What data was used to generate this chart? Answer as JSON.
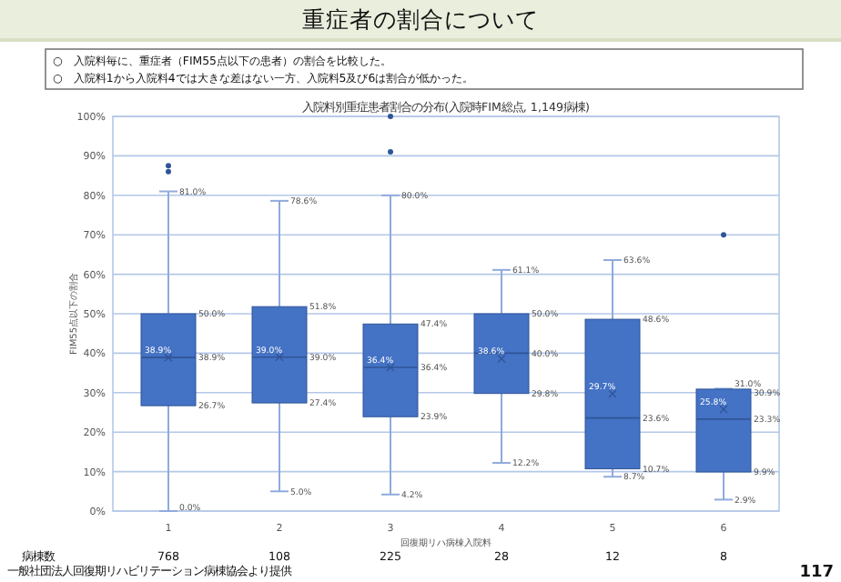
{
  "chart_data": {
    "type": "box",
    "title": "重症者の割合について",
    "subtitle": "入院料別重症患者割合の分布(入院時FIM総点, 1,149病棟)",
    "xlabel": "回復期リハ病棟入院料",
    "ylabel": "FIM55点以下の割合",
    "categories": [
      "1",
      "2",
      "3",
      "4",
      "5",
      "6"
    ],
    "color": "#4472c4",
    "boxes": [
      {
        "low": 0.0,
        "q1": 26.7,
        "median": 38.9,
        "q3": 50.0,
        "high": 81.0,
        "mean": 38.9,
        "outliers": [
          87.5,
          86.0
        ]
      },
      {
        "low": 5.0,
        "q1": 27.4,
        "median": 39.0,
        "q3": 51.8,
        "high": 78.6,
        "mean": 39.0
      },
      {
        "low": 4.2,
        "q1": 23.9,
        "median": 36.4,
        "q3": 47.4,
        "high": 80.0,
        "mean": 36.4,
        "outliers": [
          91.0,
          100.0
        ]
      },
      {
        "low": 12.2,
        "q1": 29.8,
        "median": 40.0,
        "q3": 50.0,
        "high": 61.1,
        "mean": 38.6
      },
      {
        "low": 8.7,
        "q1": 10.7,
        "median": 23.6,
        "q3": 48.6,
        "high": 63.6,
        "mean": 29.7
      },
      {
        "low": 2.9,
        "q1": 9.9,
        "median": 23.3,
        "q3": 30.9,
        "high": 31.0,
        "mean": 25.8,
        "outliers": [
          70.0
        ]
      }
    ],
    "ylim": [
      0,
      100
    ],
    "yticks": [
      {
        "value": 0,
        "label": "0%"
      },
      {
        "value": 10,
        "label": "10%"
      },
      {
        "value": 20,
        "label": "20%"
      },
      {
        "value": 30,
        "label": "30%"
      },
      {
        "value": 40,
        "label": "40%"
      },
      {
        "value": 50,
        "label": "50%"
      },
      {
        "value": 60,
        "label": "60%"
      },
      {
        "value": 70,
        "label": "70%"
      },
      {
        "value": 80,
        "label": "80%"
      },
      {
        "value": 90,
        "label": "90%"
      },
      {
        "value": 100,
        "label": "100%"
      }
    ],
    "grid": "y",
    "annotations": [
      "○　入院料毎に、重症者（FIM55点以下の患者）の割合を比較した。",
      "○　入院料1から入院料4では大きな差はない一方、入院料5及び6は割合が低かった。",
      "病棟数",
      "768",
      "108",
      "225",
      "28",
      "12",
      "8",
      "一般社団法人回復期リハビリテーション病棟協会より提供",
      "117",
      "81.0%",
      "50.0%",
      "38.9%",
      "26.7%",
      "0.0%",
      "38.9%",
      "78.6%",
      "51.8%",
      "39.0%",
      "27.4%",
      "5.0%",
      "39.0%",
      "80.0%",
      "47.4%",
      "36.4%",
      "23.9%",
      "4.2%",
      "36.4%",
      "61.1%",
      "50.0%",
      "40.0%",
      "29.8%",
      "12.2%",
      "38.6%",
      "63.6%",
      "48.6%",
      "23.6%",
      "10.7%",
      "8.7%",
      "29.7%",
      "31.0%",
      "30.9%",
      "23.3%",
      "9.9%",
      "2.9%",
      "25.8%"
    ]
  }
}
